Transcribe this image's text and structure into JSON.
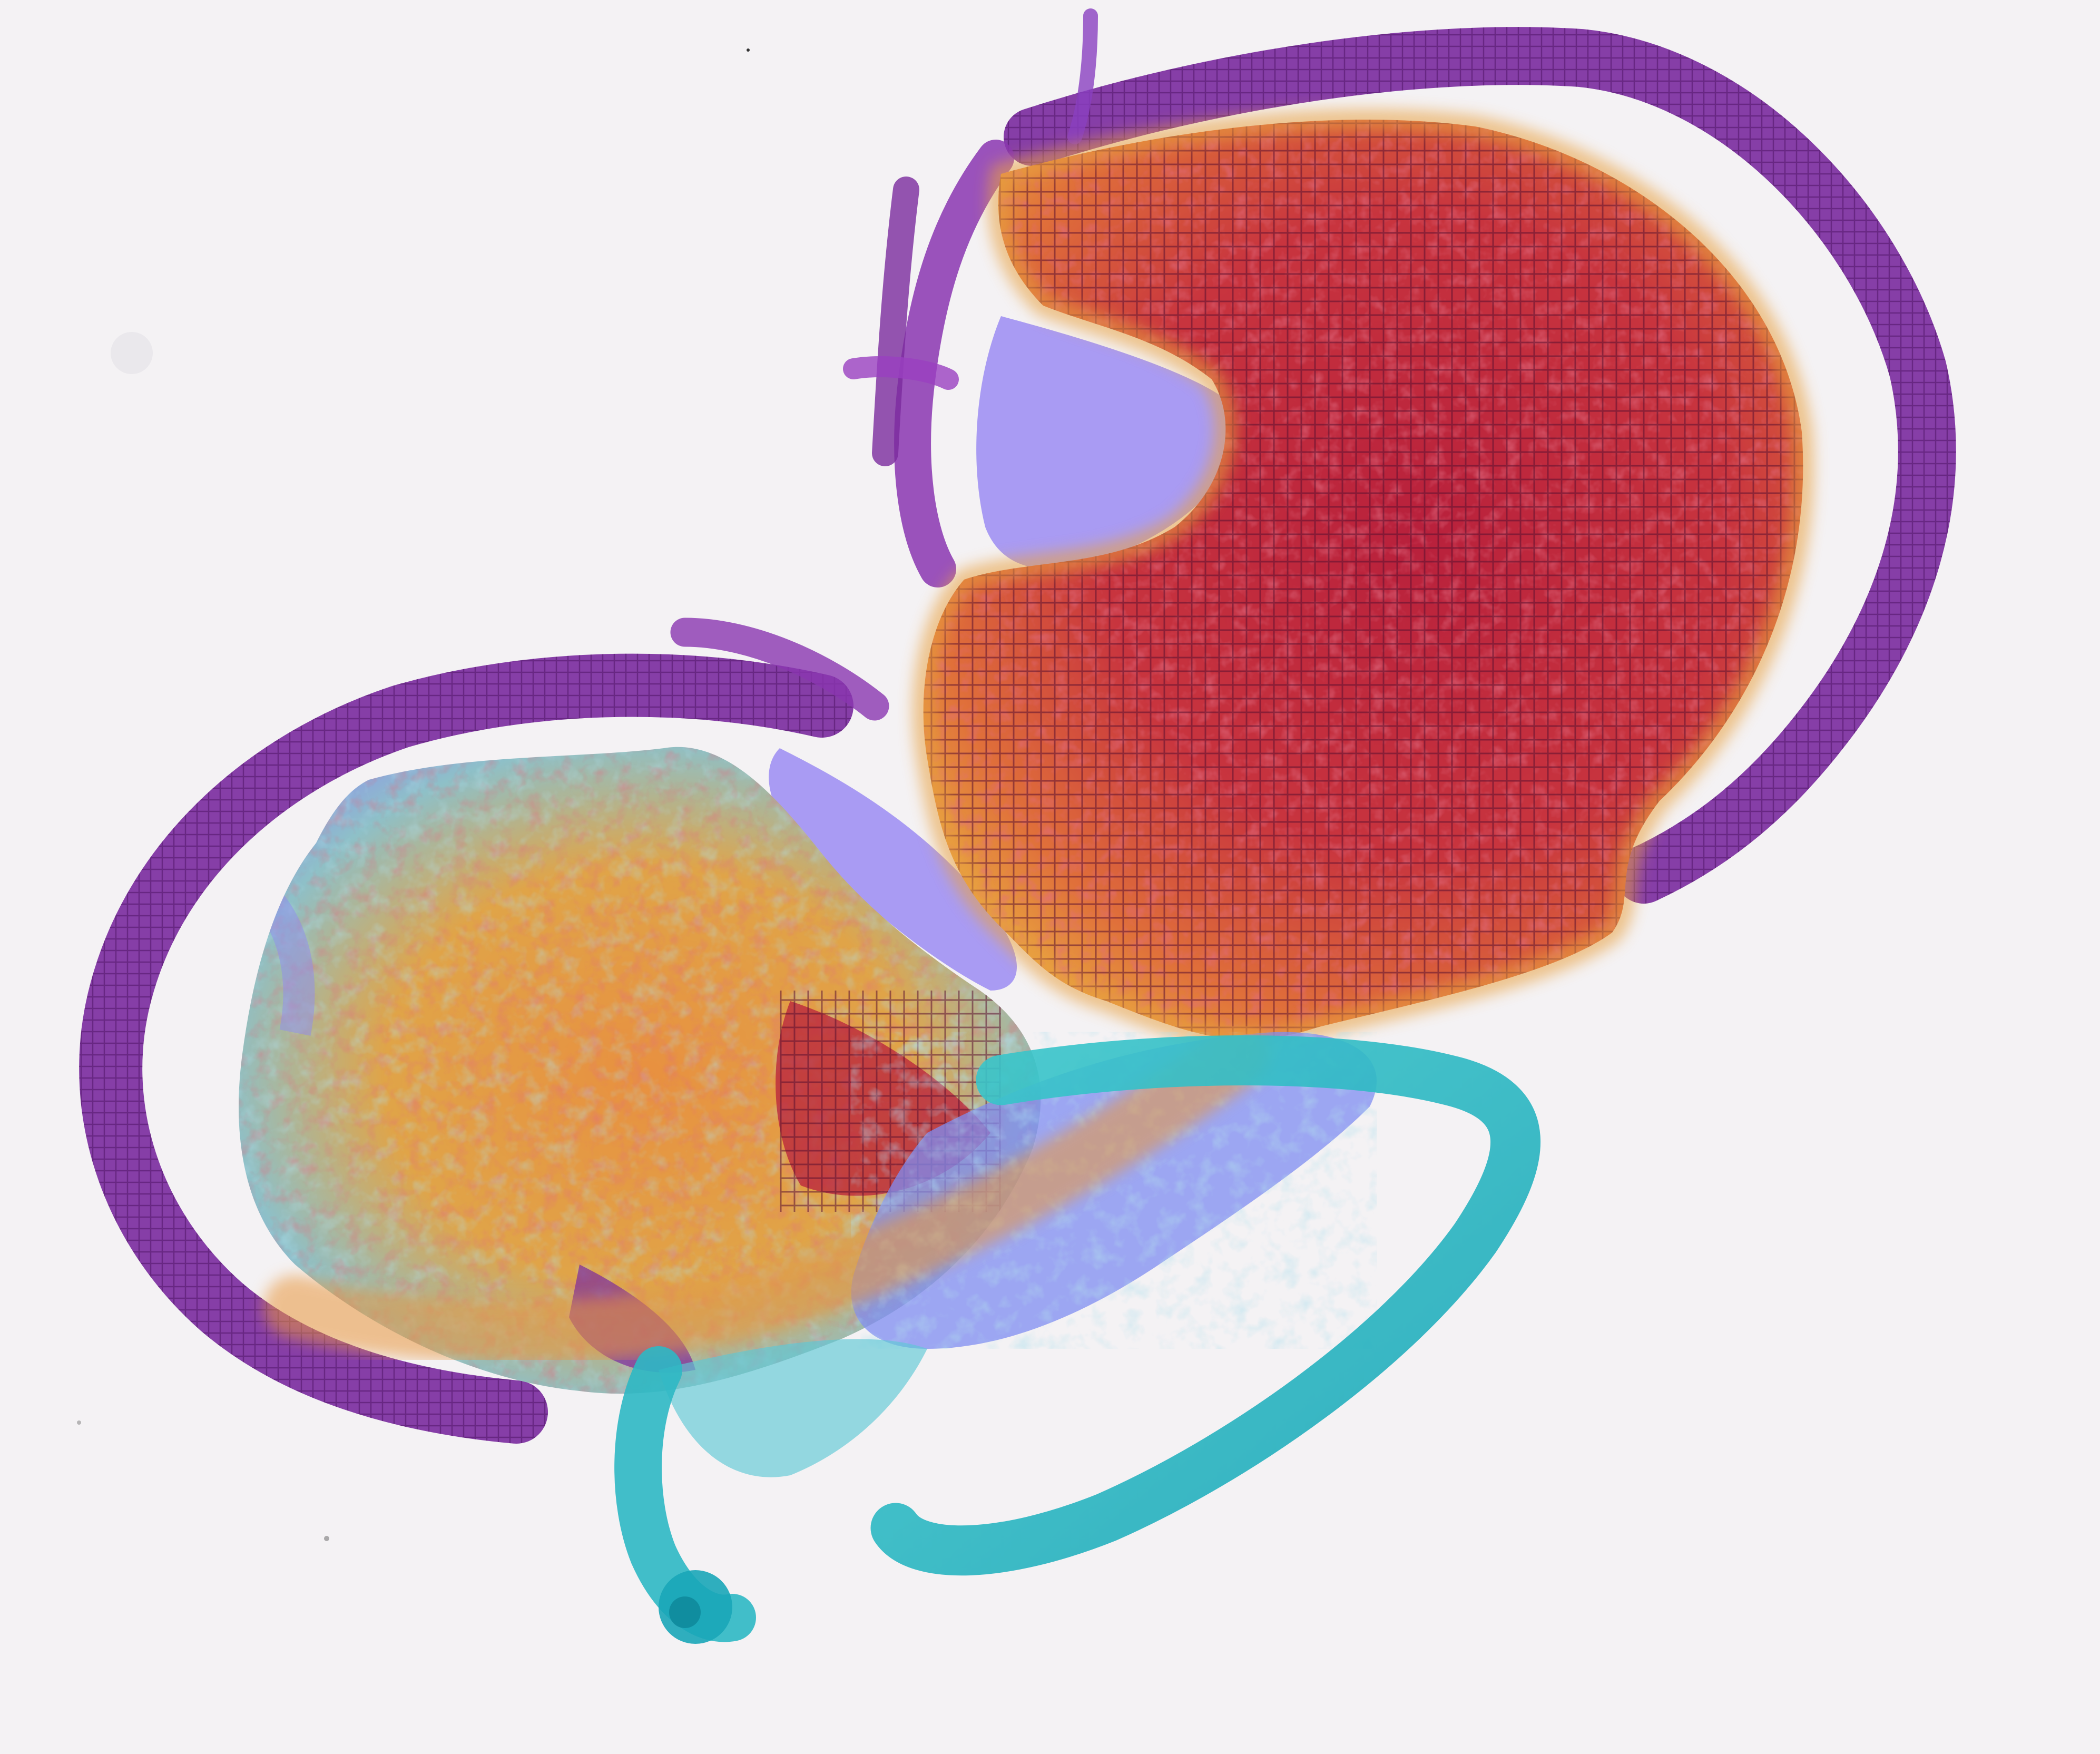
{
  "image": {
    "kind": "tissue-heatmap-overlay",
    "background_color": "#f4f2f4",
    "colors": {
      "hot": "#c0283e",
      "hot_dark": "#8e1a38",
      "warm": "#e26a3a",
      "orange": "#e8963c",
      "cool_cyan": "#5fc7d6",
      "cool_blue": "#7f8cf2",
      "periwinkle": "#9b8cf2",
      "marker_purple": "#7a2a9e",
      "marker_teal": "#2eb8c4",
      "grid_line": "#5a1030"
    },
    "regions": [
      {
        "name": "upper-right-tissue-section",
        "dominant_score": "high"
      },
      {
        "name": "lower-left-tissue-section",
        "dominant_score": "mixed"
      },
      {
        "name": "purple-marker-ring-top-right"
      },
      {
        "name": "purple-marker-ring-left"
      },
      {
        "name": "teal-marker-hook-bottom"
      }
    ]
  }
}
